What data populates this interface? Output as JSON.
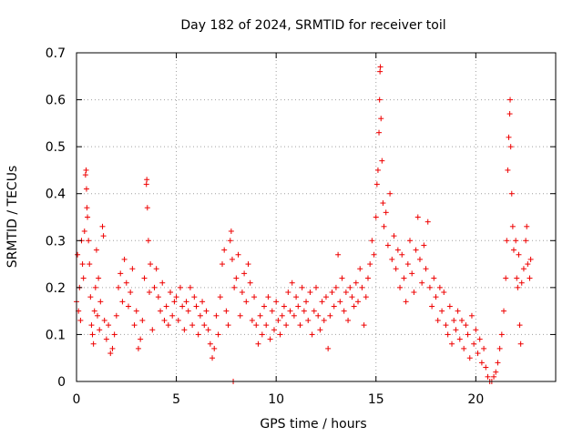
{
  "chart_data": {
    "type": "scatter",
    "title": "Day 182 of 2024, SRMTID for receiver toil",
    "xlabel": "GPS time / hours",
    "ylabel": "SRMTID / TECUs",
    "xlim": [
      0,
      24
    ],
    "ylim": [
      0,
      0.7
    ],
    "xticks": [
      0,
      5,
      10,
      15,
      20
    ],
    "xtick_labels": [
      "0",
      "5",
      "10",
      "15",
      "20"
    ],
    "yticks": [
      0,
      0.1,
      0.2,
      0.3,
      0.4,
      0.5,
      0.6,
      0.7
    ],
    "ytick_labels": [
      "0",
      "0.1",
      "0.2",
      "0.3",
      "0.4",
      "0.5",
      "0.6",
      "0.7"
    ],
    "grid": true,
    "marker": "plus",
    "color": "#ee0000",
    "series": [
      {
        "name": "SRMTID",
        "points": [
          [
            0.0,
            0.17
          ],
          [
            0.05,
            0.27
          ],
          [
            0.1,
            0.15
          ],
          [
            0.15,
            0.2
          ],
          [
            0.2,
            0.13
          ],
          [
            0.25,
            0.3
          ],
          [
            0.3,
            0.25
          ],
          [
            0.35,
            0.22
          ],
          [
            0.4,
            0.32
          ],
          [
            0.45,
            0.44
          ],
          [
            0.48,
            0.45
          ],
          [
            0.5,
            0.41
          ],
          [
            0.52,
            0.37
          ],
          [
            0.55,
            0.35
          ],
          [
            0.6,
            0.3
          ],
          [
            0.65,
            0.25
          ],
          [
            0.7,
            0.18
          ],
          [
            0.75,
            0.12
          ],
          [
            0.8,
            0.1
          ],
          [
            0.85,
            0.08
          ],
          [
            0.9,
            0.15
          ],
          [
            0.95,
            0.2
          ],
          [
            1.0,
            0.28
          ],
          [
            1.05,
            0.14
          ],
          [
            1.1,
            0.22
          ],
          [
            1.15,
            0.11
          ],
          [
            1.2,
            0.17
          ],
          [
            1.3,
            0.33
          ],
          [
            1.35,
            0.31
          ],
          [
            1.4,
            0.13
          ],
          [
            1.5,
            0.09
          ],
          [
            1.6,
            0.12
          ],
          [
            1.7,
            0.06
          ],
          [
            1.8,
            0.07
          ],
          [
            1.9,
            0.1
          ],
          [
            2.0,
            0.14
          ],
          [
            2.1,
            0.2
          ],
          [
            2.2,
            0.23
          ],
          [
            2.3,
            0.17
          ],
          [
            2.4,
            0.26
          ],
          [
            2.5,
            0.21
          ],
          [
            2.6,
            0.16
          ],
          [
            2.7,
            0.19
          ],
          [
            2.8,
            0.24
          ],
          [
            2.9,
            0.12
          ],
          [
            3.0,
            0.15
          ],
          [
            3.1,
            0.07
          ],
          [
            3.2,
            0.09
          ],
          [
            3.3,
            0.13
          ],
          [
            3.4,
            0.22
          ],
          [
            3.5,
            0.42
          ],
          [
            3.52,
            0.43
          ],
          [
            3.55,
            0.37
          ],
          [
            3.6,
            0.3
          ],
          [
            3.65,
            0.19
          ],
          [
            3.7,
            0.25
          ],
          [
            3.8,
            0.11
          ],
          [
            3.9,
            0.2
          ],
          [
            4.0,
            0.24
          ],
          [
            4.1,
            0.18
          ],
          [
            4.2,
            0.15
          ],
          [
            4.3,
            0.21
          ],
          [
            4.4,
            0.13
          ],
          [
            4.5,
            0.16
          ],
          [
            4.6,
            0.12
          ],
          [
            4.7,
            0.19
          ],
          [
            4.8,
            0.14
          ],
          [
            4.9,
            0.17
          ],
          [
            5.0,
            0.18
          ],
          [
            5.1,
            0.13
          ],
          [
            5.2,
            0.2
          ],
          [
            5.3,
            0.16
          ],
          [
            5.4,
            0.11
          ],
          [
            5.5,
            0.17
          ],
          [
            5.6,
            0.15
          ],
          [
            5.7,
            0.2
          ],
          [
            5.8,
            0.12
          ],
          [
            5.9,
            0.18
          ],
          [
            6.0,
            0.16
          ],
          [
            6.1,
            0.1
          ],
          [
            6.2,
            0.14
          ],
          [
            6.3,
            0.17
          ],
          [
            6.4,
            0.12
          ],
          [
            6.5,
            0.15
          ],
          [
            6.6,
            0.11
          ],
          [
            6.7,
            0.08
          ],
          [
            6.8,
            0.05
          ],
          [
            6.9,
            0.07
          ],
          [
            7.0,
            0.14
          ],
          [
            7.1,
            0.1
          ],
          [
            7.2,
            0.18
          ],
          [
            7.3,
            0.25
          ],
          [
            7.4,
            0.28
          ],
          [
            7.5,
            0.15
          ],
          [
            7.6,
            0.12
          ],
          [
            7.7,
            0.3
          ],
          [
            7.75,
            0.32
          ],
          [
            7.8,
            0.26
          ],
          [
            7.85,
            0.0
          ],
          [
            7.9,
            0.2
          ],
          [
            8.0,
            0.22
          ],
          [
            8.1,
            0.27
          ],
          [
            8.2,
            0.14
          ],
          [
            8.3,
            0.19
          ],
          [
            8.4,
            0.23
          ],
          [
            8.5,
            0.17
          ],
          [
            8.6,
            0.25
          ],
          [
            8.7,
            0.21
          ],
          [
            8.8,
            0.13
          ],
          [
            8.9,
            0.18
          ],
          [
            9.0,
            0.12
          ],
          [
            9.1,
            0.08
          ],
          [
            9.2,
            0.14
          ],
          [
            9.3,
            0.1
          ],
          [
            9.4,
            0.16
          ],
          [
            9.5,
            0.12
          ],
          [
            9.6,
            0.18
          ],
          [
            9.7,
            0.09
          ],
          [
            9.8,
            0.15
          ],
          [
            9.9,
            0.11
          ],
          [
            10.0,
            0.17
          ],
          [
            10.1,
            0.13
          ],
          [
            10.2,
            0.1
          ],
          [
            10.3,
            0.14
          ],
          [
            10.4,
            0.16
          ],
          [
            10.5,
            0.12
          ],
          [
            10.6,
            0.19
          ],
          [
            10.7,
            0.15
          ],
          [
            10.8,
            0.21
          ],
          [
            10.9,
            0.14
          ],
          [
            11.0,
            0.18
          ],
          [
            11.1,
            0.16
          ],
          [
            11.2,
            0.12
          ],
          [
            11.3,
            0.2
          ],
          [
            11.4,
            0.15
          ],
          [
            11.5,
            0.17
          ],
          [
            11.6,
            0.13
          ],
          [
            11.7,
            0.19
          ],
          [
            11.8,
            0.1
          ],
          [
            11.9,
            0.15
          ],
          [
            12.0,
            0.2
          ],
          [
            12.1,
            0.14
          ],
          [
            12.2,
            0.11
          ],
          [
            12.3,
            0.17
          ],
          [
            12.4,
            0.13
          ],
          [
            12.5,
            0.18
          ],
          [
            12.6,
            0.07
          ],
          [
            12.7,
            0.14
          ],
          [
            12.8,
            0.19
          ],
          [
            12.9,
            0.16
          ],
          [
            13.0,
            0.2
          ],
          [
            13.1,
            0.27
          ],
          [
            13.2,
            0.17
          ],
          [
            13.3,
            0.22
          ],
          [
            13.4,
            0.15
          ],
          [
            13.5,
            0.19
          ],
          [
            13.6,
            0.13
          ],
          [
            13.7,
            0.2
          ],
          [
            13.8,
            0.18
          ],
          [
            13.9,
            0.16
          ],
          [
            14.0,
            0.21
          ],
          [
            14.1,
            0.17
          ],
          [
            14.2,
            0.24
          ],
          [
            14.3,
            0.2
          ],
          [
            14.4,
            0.12
          ],
          [
            14.5,
            0.18
          ],
          [
            14.6,
            0.22
          ],
          [
            14.7,
            0.25
          ],
          [
            14.8,
            0.3
          ],
          [
            14.9,
            0.27
          ],
          [
            15.0,
            0.35
          ],
          [
            15.05,
            0.42
          ],
          [
            15.1,
            0.45
          ],
          [
            15.15,
            0.53
          ],
          [
            15.18,
            0.6
          ],
          [
            15.2,
            0.66
          ],
          [
            15.22,
            0.67
          ],
          [
            15.25,
            0.56
          ],
          [
            15.3,
            0.47
          ],
          [
            15.35,
            0.38
          ],
          [
            15.4,
            0.33
          ],
          [
            15.5,
            0.36
          ],
          [
            15.6,
            0.29
          ],
          [
            15.7,
            0.4
          ],
          [
            15.8,
            0.26
          ],
          [
            15.9,
            0.31
          ],
          [
            16.0,
            0.24
          ],
          [
            16.1,
            0.28
          ],
          [
            16.2,
            0.2
          ],
          [
            16.3,
            0.27
          ],
          [
            16.4,
            0.22
          ],
          [
            16.5,
            0.17
          ],
          [
            16.6,
            0.25
          ],
          [
            16.7,
            0.3
          ],
          [
            16.8,
            0.23
          ],
          [
            16.9,
            0.19
          ],
          [
            17.0,
            0.28
          ],
          [
            17.1,
            0.35
          ],
          [
            17.2,
            0.26
          ],
          [
            17.3,
            0.21
          ],
          [
            17.4,
            0.29
          ],
          [
            17.5,
            0.24
          ],
          [
            17.6,
            0.34
          ],
          [
            17.7,
            0.2
          ],
          [
            17.8,
            0.16
          ],
          [
            17.9,
            0.22
          ],
          [
            18.0,
            0.18
          ],
          [
            18.1,
            0.13
          ],
          [
            18.2,
            0.2
          ],
          [
            18.3,
            0.15
          ],
          [
            18.4,
            0.19
          ],
          [
            18.5,
            0.12
          ],
          [
            18.6,
            0.1
          ],
          [
            18.7,
            0.16
          ],
          [
            18.8,
            0.08
          ],
          [
            18.9,
            0.13
          ],
          [
            19.0,
            0.11
          ],
          [
            19.1,
            0.15
          ],
          [
            19.2,
            0.09
          ],
          [
            19.3,
            0.13
          ],
          [
            19.4,
            0.07
          ],
          [
            19.5,
            0.12
          ],
          [
            19.6,
            0.1
          ],
          [
            19.7,
            0.05
          ],
          [
            19.8,
            0.14
          ],
          [
            19.9,
            0.08
          ],
          [
            20.0,
            0.11
          ],
          [
            20.1,
            0.06
          ],
          [
            20.2,
            0.09
          ],
          [
            20.3,
            0.04
          ],
          [
            20.4,
            0.07
          ],
          [
            20.5,
            0.03
          ],
          [
            20.6,
            0.01
          ],
          [
            20.7,
            0.0
          ],
          [
            20.8,
            0.0
          ],
          [
            20.9,
            0.01
          ],
          [
            21.0,
            0.02
          ],
          [
            21.1,
            0.04
          ],
          [
            21.2,
            0.07
          ],
          [
            21.3,
            0.1
          ],
          [
            21.4,
            0.15
          ],
          [
            21.5,
            0.22
          ],
          [
            21.55,
            0.3
          ],
          [
            21.6,
            0.45
          ],
          [
            21.65,
            0.52
          ],
          [
            21.7,
            0.57
          ],
          [
            21.72,
            0.6
          ],
          [
            21.75,
            0.5
          ],
          [
            21.8,
            0.4
          ],
          [
            21.85,
            0.33
          ],
          [
            21.9,
            0.28
          ],
          [
            22.0,
            0.3
          ],
          [
            22.05,
            0.22
          ],
          [
            22.1,
            0.2
          ],
          [
            22.15,
            0.27
          ],
          [
            22.2,
            0.12
          ],
          [
            22.25,
            0.08
          ],
          [
            22.3,
            0.21
          ],
          [
            22.4,
            0.24
          ],
          [
            22.5,
            0.3
          ],
          [
            22.55,
            0.33
          ],
          [
            22.6,
            0.25
          ],
          [
            22.7,
            0.22
          ],
          [
            22.75,
            0.26
          ]
        ]
      }
    ]
  }
}
